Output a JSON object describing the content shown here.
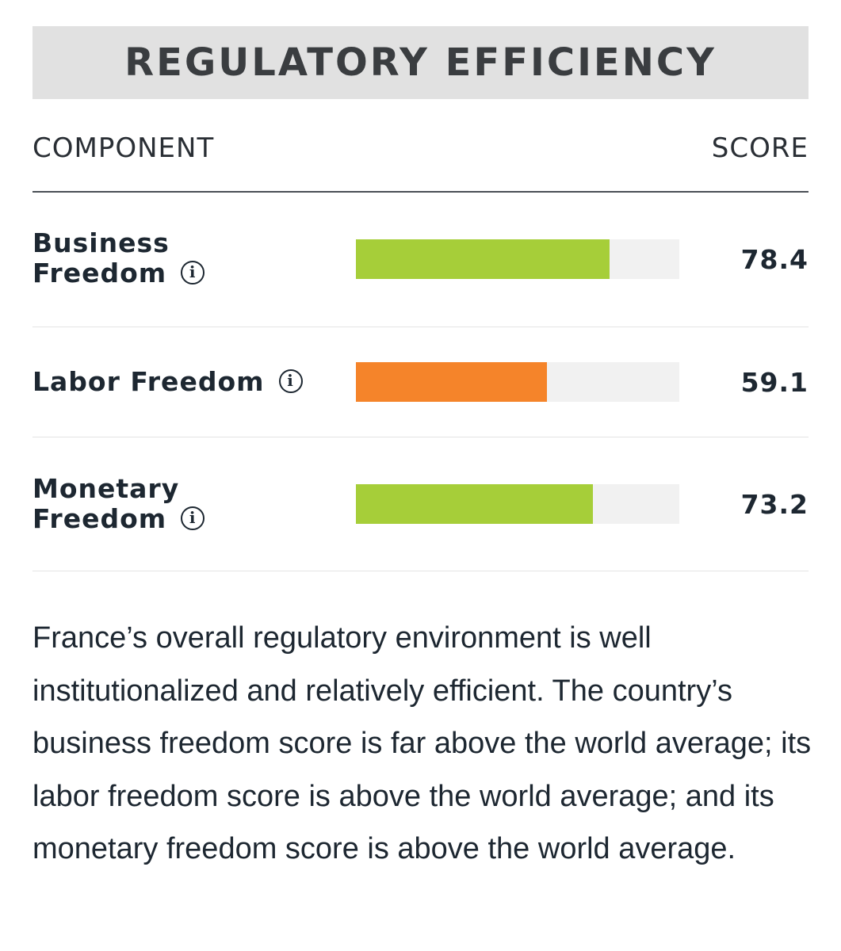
{
  "title": "REGULATORY EFFICIENCY",
  "table": {
    "header_component": "COMPONENT",
    "header_score": "SCORE",
    "rows": [
      {
        "label_line1": "Business",
        "label_line2": "Freedom",
        "score": "78.4",
        "value": 78.4,
        "color": "#a6ce39"
      },
      {
        "label_line1": "Labor Freedom",
        "score": "59.1",
        "value": 59.1,
        "color": "#f5842a"
      },
      {
        "label_line1": "Monetary",
        "label_line2": "Freedom",
        "score": "73.2",
        "value": 73.2,
        "color": "#a6ce39"
      }
    ],
    "bar_max": 100,
    "info_icon": "info-circle-icon"
  },
  "description": "France’s overall regulatory environment is well institutionalized and relatively efficient. The country’s business freedom score is far above the world average; its labor freedom score is above the world average; and its monetary freedom score is above the world average."
}
